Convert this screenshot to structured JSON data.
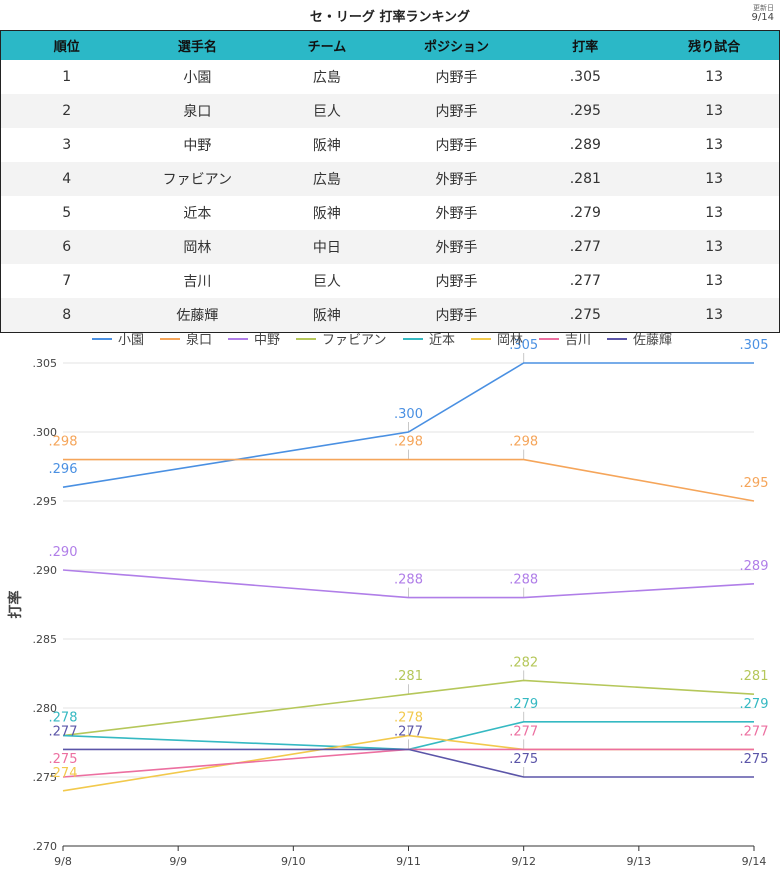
{
  "title": "セ・リーグ 打率ランキング",
  "updated_label": "更新日",
  "updated_date": "9/14",
  "table": {
    "headers": [
      "順位",
      "選手名",
      "チーム",
      "ポジション",
      "打率",
      "残り試合"
    ],
    "rows": [
      [
        "1",
        "小園",
        "広島",
        "内野手",
        ".305",
        "13"
      ],
      [
        "2",
        "泉口",
        "巨人",
        "内野手",
        ".295",
        "13"
      ],
      [
        "3",
        "中野",
        "阪神",
        "内野手",
        ".289",
        "13"
      ],
      [
        "4",
        "ファビアン",
        "広島",
        "外野手",
        ".281",
        "13"
      ],
      [
        "5",
        "近本",
        "阪神",
        "外野手",
        ".279",
        "13"
      ],
      [
        "6",
        "岡林",
        "中日",
        "外野手",
        ".277",
        "13"
      ],
      [
        "7",
        "吉川",
        "巨人",
        "内野手",
        ".277",
        "13"
      ],
      [
        "8",
        "佐藤輝",
        "阪神",
        "内野手",
        ".275",
        "13"
      ]
    ]
  },
  "chart_data": {
    "type": "line",
    "title": "",
    "xlabel": "",
    "ylabel": "打率",
    "x": [
      "9/8",
      "9/9",
      "9/10",
      "9/11",
      "9/12",
      "9/13",
      "9/14"
    ],
    "ylim": [
      0.27,
      0.305
    ],
    "yticks": [
      0.27,
      0.275,
      0.28,
      0.285,
      0.29,
      0.295,
      0.3,
      0.305
    ],
    "ytick_labels": [
      ".270",
      ".275",
      ".280",
      ".285",
      ".290",
      ".295",
      ".300",
      ".305"
    ],
    "legend_position": "top",
    "grid": true,
    "series": [
      {
        "name": "小園",
        "color": "#4a90e2",
        "points": [
          {
            "x": "9/8",
            "y": 0.296,
            "label": ".296"
          },
          {
            "x": "9/11",
            "y": 0.3,
            "label": ".300"
          },
          {
            "x": "9/12",
            "y": 0.305,
            "label": ".305"
          },
          {
            "x": "9/14",
            "y": 0.305,
            "label": ".305"
          }
        ]
      },
      {
        "name": "泉口",
        "color": "#f5a55a",
        "points": [
          {
            "x": "9/8",
            "y": 0.298,
            "label": ".298"
          },
          {
            "x": "9/11",
            "y": 0.298,
            "label": ".298"
          },
          {
            "x": "9/12",
            "y": 0.298,
            "label": ".298"
          },
          {
            "x": "9/14",
            "y": 0.295,
            "label": ".295"
          }
        ]
      },
      {
        "name": "中野",
        "color": "#b07ee8",
        "points": [
          {
            "x": "9/8",
            "y": 0.29,
            "label": ".290"
          },
          {
            "x": "9/11",
            "y": 0.288,
            "label": ".288"
          },
          {
            "x": "9/12",
            "y": 0.288,
            "label": ".288"
          },
          {
            "x": "9/14",
            "y": 0.289,
            "label": ".289"
          }
        ]
      },
      {
        "name": "ファビアン",
        "color": "#b5c75a",
        "points": [
          {
            "x": "9/8",
            "y": 0.278,
            "label": ""
          },
          {
            "x": "9/11",
            "y": 0.281,
            "label": ".281"
          },
          {
            "x": "9/12",
            "y": 0.282,
            "label": ".282"
          },
          {
            "x": "9/14",
            "y": 0.281,
            "label": ".281"
          }
        ]
      },
      {
        "name": "近本",
        "color": "#35b9c2",
        "points": [
          {
            "x": "9/8",
            "y": 0.278,
            "label": ".278"
          },
          {
            "x": "9/11",
            "y": 0.277,
            "label": ""
          },
          {
            "x": "9/12",
            "y": 0.279,
            "label": ".279"
          },
          {
            "x": "9/14",
            "y": 0.279,
            "label": ".279"
          }
        ]
      },
      {
        "name": "岡林",
        "color": "#f2c94c",
        "points": [
          {
            "x": "9/8",
            "y": 0.274,
            "label": ".274"
          },
          {
            "x": "9/11",
            "y": 0.278,
            "label": ".278"
          },
          {
            "x": "9/12",
            "y": 0.277,
            "label": ""
          },
          {
            "x": "9/14",
            "y": 0.277,
            "label": ""
          }
        ]
      },
      {
        "name": "吉川",
        "color": "#ec6fa0",
        "points": [
          {
            "x": "9/8",
            "y": 0.275,
            "label": ".275"
          },
          {
            "x": "9/11",
            "y": 0.277,
            "label": ""
          },
          {
            "x": "9/12",
            "y": 0.277,
            "label": ".277"
          },
          {
            "x": "9/14",
            "y": 0.277,
            "label": ".277"
          }
        ]
      },
      {
        "name": "佐藤輝",
        "color": "#5b55a8",
        "points": [
          {
            "x": "9/8",
            "y": 0.277,
            "label": ".277"
          },
          {
            "x": "9/11",
            "y": 0.277,
            "label": ".277"
          },
          {
            "x": "9/12",
            "y": 0.275,
            "label": ".275"
          },
          {
            "x": "9/14",
            "y": 0.275,
            "label": ".275"
          }
        ]
      }
    ]
  }
}
